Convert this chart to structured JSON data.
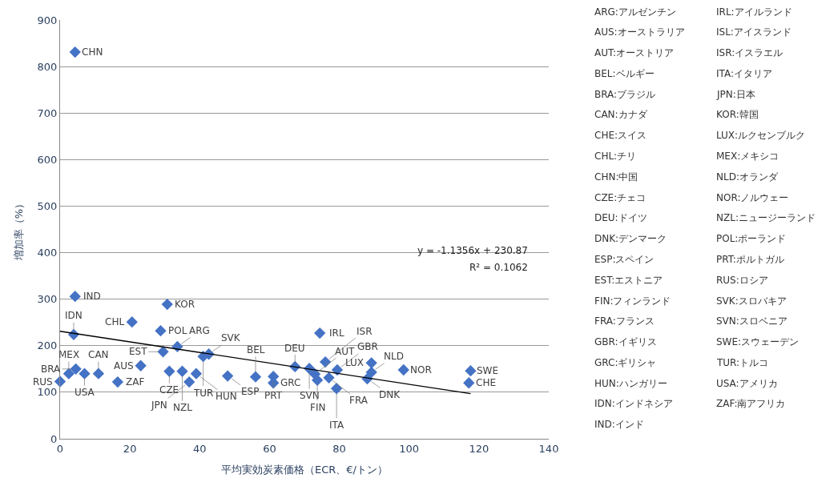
{
  "chart_data": {
    "type": "scatter",
    "xlabel": "平均実効炭素価格（ECR、€/トン）",
    "ylabel": "増加率（%）",
    "xlim": [
      0,
      140
    ],
    "xticks": [
      0,
      20,
      40,
      60,
      80,
      100,
      120,
      140
    ],
    "ylim": [
      0,
      900
    ],
    "yticks": [
      0,
      100,
      200,
      300,
      400,
      500,
      600,
      700,
      800,
      900
    ],
    "grid": "y",
    "legend": false,
    "marker": "diamond",
    "series": [
      {
        "color": "#4472c4",
        "x": [
          4.3,
          4.3,
          3.9,
          30.7,
          20.6,
          28.8,
          74.4,
          29.5,
          33.6,
          42.6,
          41,
          23.1,
          31.3,
          35,
          39,
          37,
          48,
          56,
          61.1,
          61.1,
          67.3,
          71.4,
          73,
          73.7,
          76,
          79.4,
          77,
          79.2,
          89.2,
          89.2,
          88,
          98.4,
          117.6,
          117.1,
          0,
          2.5,
          4.5,
          7,
          11,
          16.5
        ],
        "values": [
          831,
          306,
          224,
          289,
          251,
          232,
          227,
          187,
          198,
          182,
          177,
          157,
          145,
          145,
          140,
          122,
          135,
          133,
          134,
          120,
          155,
          151,
          139,
          126,
          165,
          148,
          131,
          108,
          163,
          143,
          129,
          148,
          146,
          120,
          123,
          140,
          150,
          140,
          140,
          122
        ],
        "value_labels": [
          "CHN",
          "IND",
          "IDN",
          "KOR",
          "CHL",
          "POL",
          "IRL",
          "EST",
          "ARG",
          "SVK",
          "TUR",
          "AUS",
          "CZE",
          "NZL",
          "HUN",
          "JPN",
          "ESP",
          "BEL",
          "PRT",
          "GRC",
          "DEU",
          "SVN",
          "AUT",
          "FIN",
          "ISR",
          "GBR",
          "FRA",
          "ITA",
          "LUX",
          "NLD",
          "DNK",
          "NOR",
          "SWE",
          "CHE",
          "RUS",
          "MEX",
          "BRA",
          "USA",
          "CAN",
          "ZAF"
        ]
      },
      {
        "type": "line",
        "color": "#000000",
        "x": [
          0,
          117.6
        ],
        "values": [
          231,
          97
        ],
        "marker": "none"
      }
    ],
    "annotations": [
      "y = -1.1356x + 230.87",
      "R² = 0.1062",
      "ARG:アルゼンチン",
      "AUS:オーストラリア",
      "AUT:オーストリア",
      "BEL:ベルギー",
      "BRA:ブラジル",
      "CAN:カナダ",
      "CHE:スイス",
      "CHL:チリ",
      "CHN:中国",
      "CZE:チェコ",
      "DEU:ドイツ",
      "DNK:デンマーク",
      "ESP:スペイン",
      "EST:エストニア",
      "FIN:フィンランド",
      "FRA:フランス",
      "GBR:イギリス",
      "GRC:ギリシャ",
      "HUN:ハンガリー",
      "IDN:インドネシア",
      "IND:インド",
      "IRL:アイルランド",
      "ISL:アイスランド",
      "ISR:イスラエル",
      "ITA:イタリア",
      "JPN:日本",
      "KOR:韓国",
      "LUX:ルクセンブルク",
      "MEX:メキシコ",
      "NLD:オランダ",
      "NOR:ノルウェー",
      "NZL:ニュージーランド",
      "POL:ポーランド",
      "PRT:ポルトガル",
      "RUS:ロシア",
      "SVK:スロバキア",
      "SVN:スロベニア",
      "SWE:スウェーデン",
      "TUR:トルコ",
      "USA:アメリカ",
      "ZAF:南アフリカ"
    ]
  }
}
